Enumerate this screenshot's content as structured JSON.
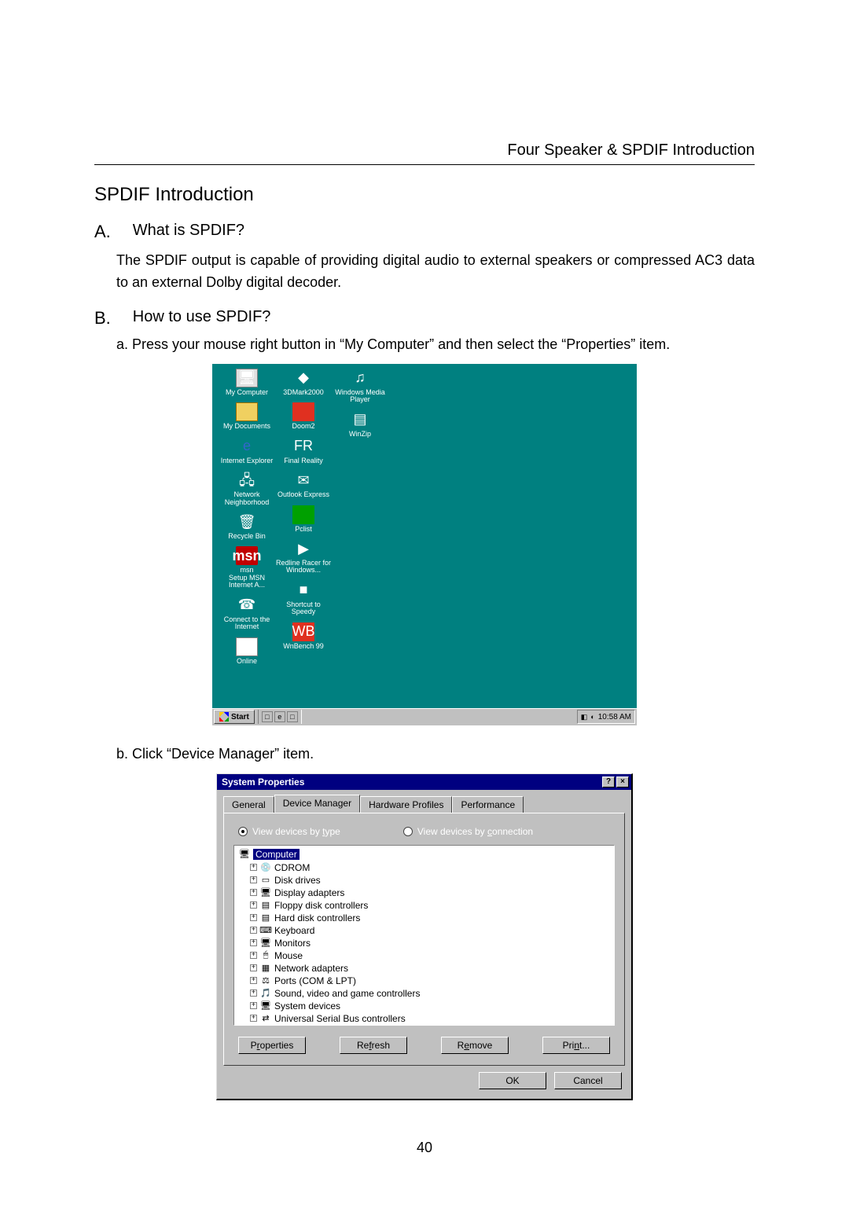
{
  "header": "Four Speaker & SPDIF Introduction",
  "title": "SPDIF Introduction",
  "sectionA": {
    "letter": "A.",
    "heading": "What is SPDIF?",
    "body": "The SPDIF output is capable of providing digital audio to external speakers or compressed AC3 data to an external Dolby digital decoder."
  },
  "sectionB": {
    "letter": "B.",
    "heading": "How to use SPDIF?",
    "step_a": "a. Press your mouse right button in “My Computer” and then select the “Properties” item.",
    "step_b": "b. Click “Device Manager” item."
  },
  "desktop": {
    "bg_color": "#008080",
    "icons_col1": [
      {
        "label": "My Computer",
        "glyph": "🖥",
        "cls": "g-mycomp"
      },
      {
        "label": "My Documents",
        "glyph": "",
        "cls": "g-folder"
      },
      {
        "label": "Internet Explorer",
        "glyph": "e",
        "cls": "g-ie"
      },
      {
        "label": "Network Neighborhood",
        "glyph": "🖧",
        "cls": ""
      },
      {
        "label": "Recycle Bin",
        "glyph": "🗑",
        "cls": ""
      },
      {
        "label": "msn",
        "glyph": "msn",
        "cls": "g-msn",
        "sub": "Setup MSN Internet A..."
      },
      {
        "label": "Connect to the Internet",
        "glyph": "☎",
        "cls": ""
      },
      {
        "label": "Online",
        "glyph": "",
        "cls": "g-generic"
      }
    ],
    "icons_col2": [
      {
        "label": "3DMark2000",
        "glyph": "◆",
        "cls": ""
      },
      {
        "label": "Doom2",
        "glyph": "",
        "cls": "g-red"
      },
      {
        "label": "Final Reality",
        "glyph": "FR",
        "cls": ""
      },
      {
        "label": "Outlook Express",
        "glyph": "✉",
        "cls": ""
      },
      {
        "label": "Pclist",
        "glyph": "",
        "cls": "g-green"
      },
      {
        "label": "Redline Racer for Windows...",
        "glyph": "▶",
        "cls": ""
      },
      {
        "label": "Shortcut to Speedy",
        "glyph": "■",
        "cls": ""
      },
      {
        "label": "WnBench 99",
        "glyph": "WB",
        "cls": "g-red"
      }
    ],
    "icons_col3": [
      {
        "label": "Windows Media Player",
        "glyph": "♫",
        "cls": ""
      },
      {
        "label": "WinZip",
        "glyph": "▤",
        "cls": ""
      }
    ],
    "taskbar": {
      "start": "Start",
      "clock": "10:58 AM"
    }
  },
  "dialog": {
    "title": "System Properties",
    "tabs": [
      "General",
      "Device Manager",
      "Hardware Profiles",
      "Performance"
    ],
    "active_tab": 1,
    "radio1_prefix": "View devices by ",
    "radio1_key": "t",
    "radio1_suffix": "ype",
    "radio2_prefix": "View devices by ",
    "radio2_key": "c",
    "radio2_suffix": "onnection",
    "tree_root": "Computer",
    "tree": [
      {
        "label": "CDROM",
        "icon": "💿"
      },
      {
        "label": "Disk drives",
        "icon": "▭"
      },
      {
        "label": "Display adapters",
        "icon": "🖥"
      },
      {
        "label": "Floppy disk controllers",
        "icon": "▤"
      },
      {
        "label": "Hard disk controllers",
        "icon": "▤"
      },
      {
        "label": "Keyboard",
        "icon": "⌨"
      },
      {
        "label": "Monitors",
        "icon": "🖥"
      },
      {
        "label": "Mouse",
        "icon": "🖱"
      },
      {
        "label": "Network adapters",
        "icon": "▦"
      },
      {
        "label": "Ports (COM & LPT)",
        "icon": "⚖"
      },
      {
        "label": "Sound, video and game controllers",
        "icon": "🎵"
      },
      {
        "label": "System devices",
        "icon": "🖥"
      },
      {
        "label": "Universal Serial Bus controllers",
        "icon": "⇄"
      }
    ],
    "buttons": {
      "properties_pre": "P",
      "properties_key": "r",
      "properties_post": "operties",
      "refresh_pre": "Re",
      "refresh_key": "f",
      "refresh_post": "resh",
      "remove_pre": "R",
      "remove_key": "e",
      "remove_post": "move",
      "print_pre": "Pri",
      "print_key": "n",
      "print_post": "t...",
      "ok": "OK",
      "cancel": "Cancel"
    }
  },
  "page_number": "40"
}
